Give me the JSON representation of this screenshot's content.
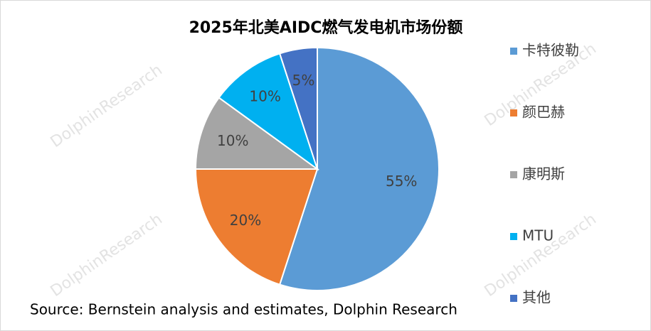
{
  "chart_data": {
    "type": "pie",
    "title": "2025年北美AIDC燃气发电机市场份额",
    "categories": [
      "卡特彼勒",
      "颜巴赫",
      "康明斯",
      "MTU",
      "其他"
    ],
    "values": [
      55,
      20,
      10,
      10,
      5
    ],
    "value_labels": [
      "55%",
      "20%",
      "10%",
      "10%",
      "5%"
    ],
    "colors": [
      "#5b9bd5",
      "#ed7d31",
      "#a5a5a5",
      "#00b0f0",
      "#4472c4"
    ],
    "legend": "right",
    "source": "Source: Bernstein analysis and estimates, Dolphin Research",
    "watermark": "DolphinResearch"
  }
}
